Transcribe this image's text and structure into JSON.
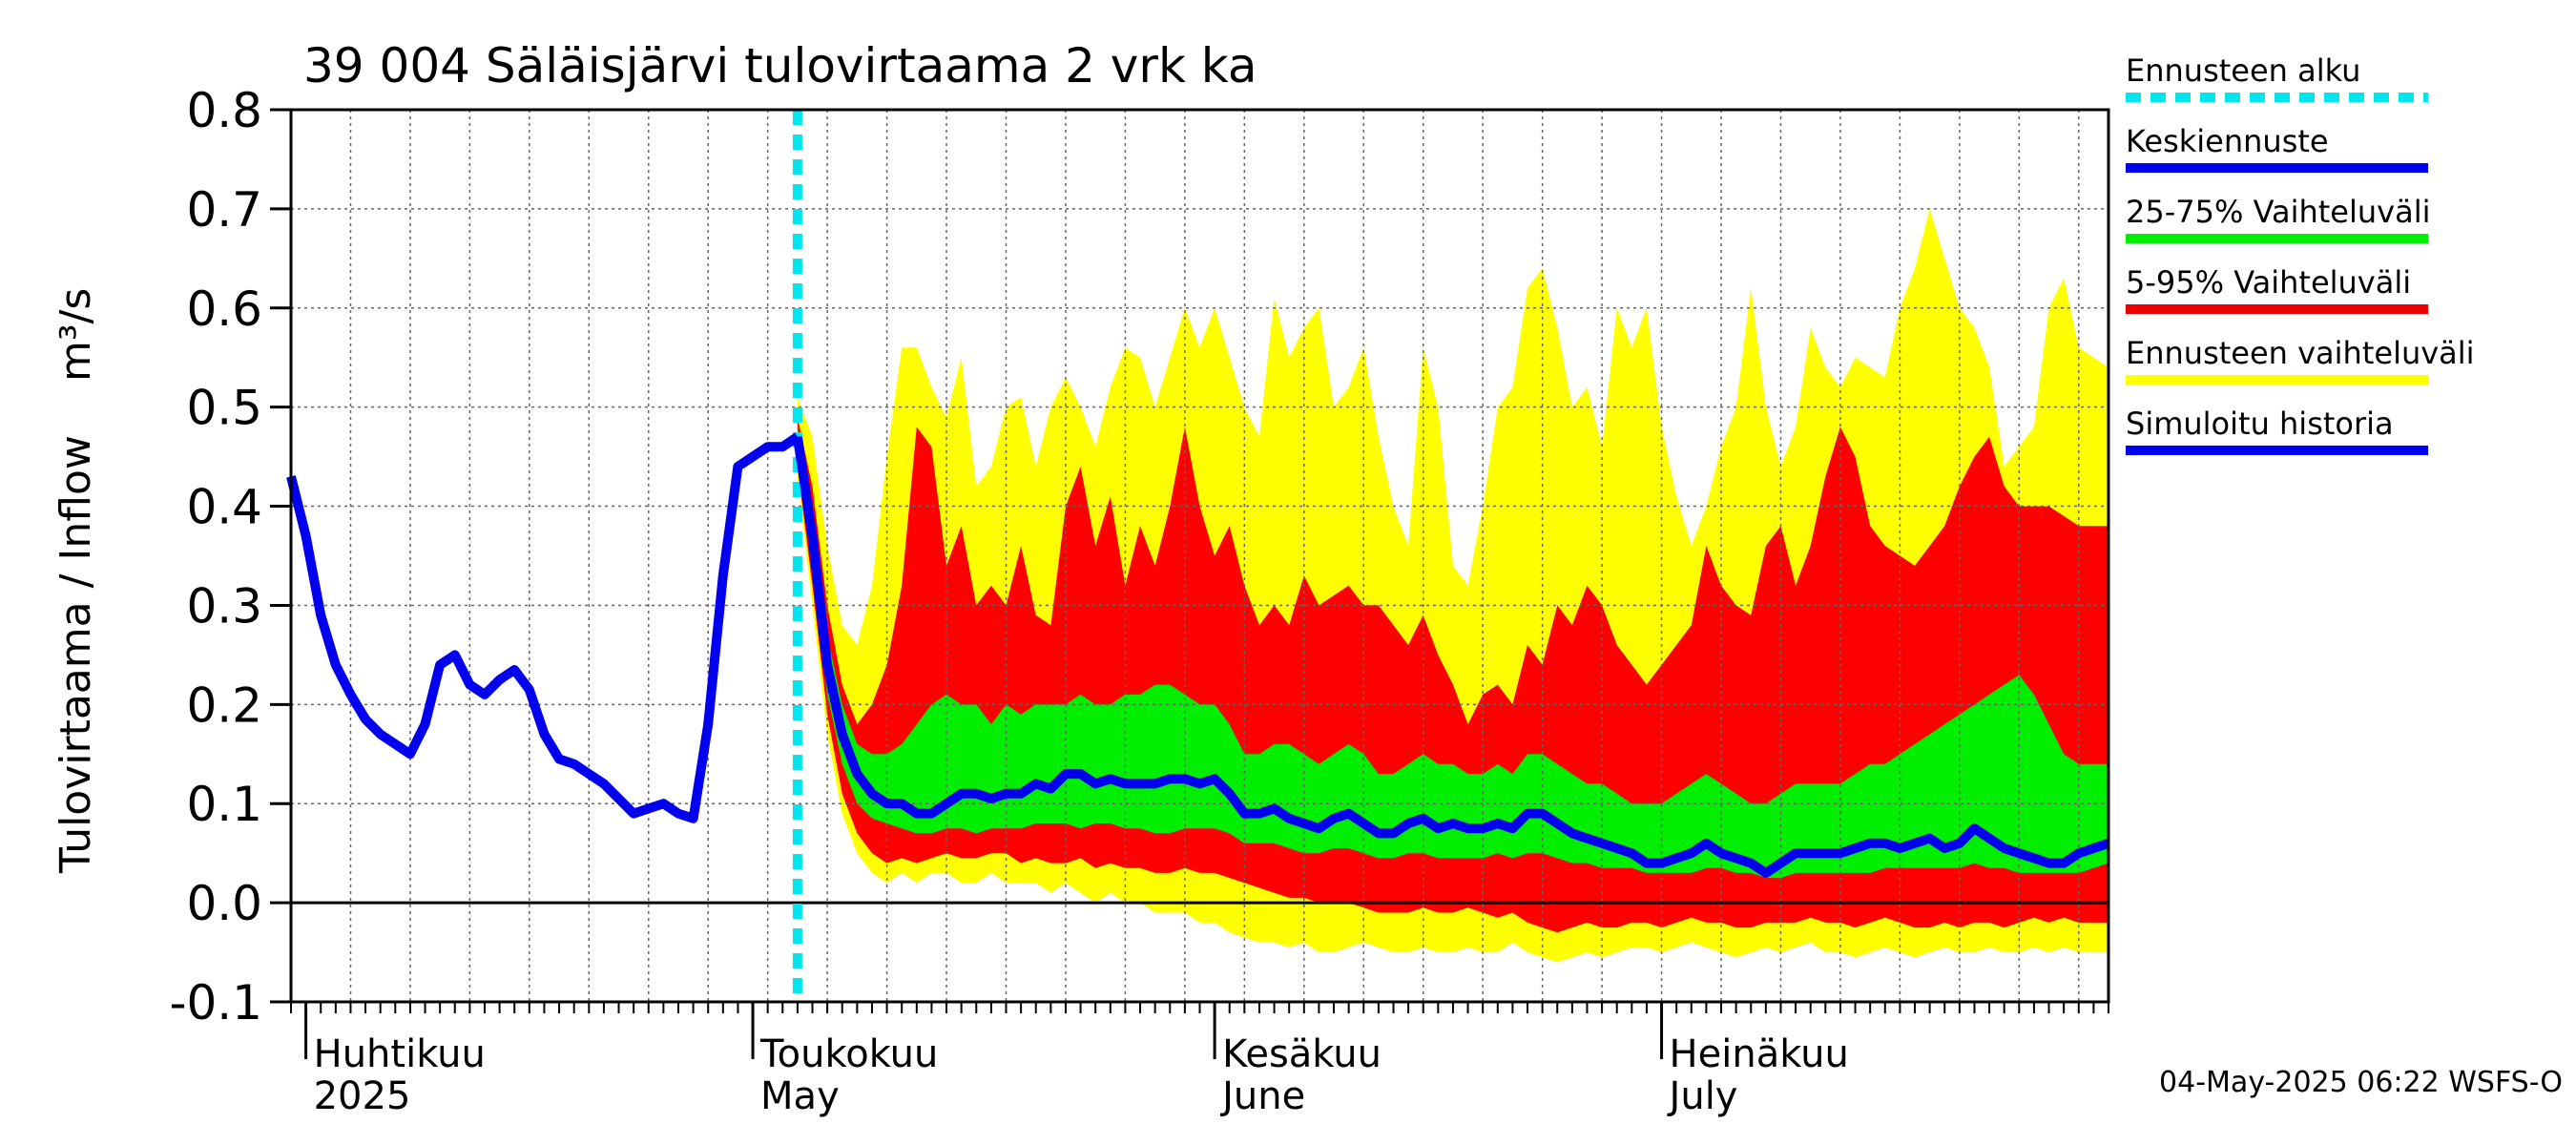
{
  "chart_data": {
    "type": "area",
    "title": "39 004 Säläisjärvi tulovirtaama 2 vrk ka",
    "ylabel": "Tulovirtaama / Inflow",
    "yunit": "m³/s",
    "ylim": [
      -0.1,
      0.8
    ],
    "yticks": [
      -0.1,
      0.0,
      0.1,
      0.2,
      0.3,
      0.4,
      0.5,
      0.6,
      0.7,
      0.8
    ],
    "ytick_labels": [
      "-0.1",
      "0.0",
      "0.1",
      "0.2",
      "0.3",
      "0.4",
      "0.5",
      "0.6",
      "0.7",
      "0.8"
    ],
    "xlim": [
      "2025-03-31",
      "2025-07-31"
    ],
    "grid": true,
    "months": [
      {
        "date": "2025-04-01",
        "fi": "Huhtikuu",
        "en": "2025"
      },
      {
        "date": "2025-05-01",
        "fi": "Toukokuu",
        "en": "May"
      },
      {
        "date": "2025-06-01",
        "fi": "Kesäkuu",
        "en": "June"
      },
      {
        "date": "2025-07-01",
        "fi": "Heinäkuu",
        "en": "July"
      }
    ],
    "forecast_start": "2025-05-04",
    "history": {
      "name": "Simuloitu historia",
      "x": [
        "2025-03-31",
        "2025-04-01",
        "2025-04-02",
        "2025-04-03",
        "2025-04-04",
        "2025-04-05",
        "2025-04-06",
        "2025-04-07",
        "2025-04-08",
        "2025-04-09",
        "2025-04-10",
        "2025-04-11",
        "2025-04-12",
        "2025-04-13",
        "2025-04-14",
        "2025-04-15",
        "2025-04-16",
        "2025-04-17",
        "2025-04-18",
        "2025-04-19",
        "2025-04-20",
        "2025-04-21",
        "2025-04-22",
        "2025-04-23",
        "2025-04-24",
        "2025-04-25",
        "2025-04-26",
        "2025-04-27",
        "2025-04-28",
        "2025-04-29",
        "2025-04-30",
        "2025-05-01",
        "2025-05-02",
        "2025-05-03",
        "2025-05-04"
      ],
      "y": [
        0.43,
        0.37,
        0.29,
        0.24,
        0.21,
        0.185,
        0.17,
        0.16,
        0.15,
        0.18,
        0.24,
        0.25,
        0.22,
        0.21,
        0.225,
        0.235,
        0.215,
        0.17,
        0.145,
        0.14,
        0.13,
        0.12,
        0.105,
        0.09,
        0.095,
        0.1,
        0.09,
        0.085,
        0.18,
        0.33,
        0.44,
        0.45,
        0.46,
        0.46,
        0.47
      ]
    },
    "forecast": {
      "x": [
        "2025-05-04",
        "2025-05-05",
        "2025-05-06",
        "2025-05-07",
        "2025-05-08",
        "2025-05-09",
        "2025-05-10",
        "2025-05-11",
        "2025-05-12",
        "2025-05-13",
        "2025-05-14",
        "2025-05-15",
        "2025-05-16",
        "2025-05-17",
        "2025-05-18",
        "2025-05-19",
        "2025-05-20",
        "2025-05-21",
        "2025-05-22",
        "2025-05-23",
        "2025-05-24",
        "2025-05-25",
        "2025-05-26",
        "2025-05-27",
        "2025-05-28",
        "2025-05-29",
        "2025-05-30",
        "2025-05-31",
        "2025-06-01",
        "2025-06-02",
        "2025-06-03",
        "2025-06-04",
        "2025-06-05",
        "2025-06-06",
        "2025-06-07",
        "2025-06-08",
        "2025-06-09",
        "2025-06-10",
        "2025-06-11",
        "2025-06-12",
        "2025-06-13",
        "2025-06-14",
        "2025-06-15",
        "2025-06-16",
        "2025-06-17",
        "2025-06-18",
        "2025-06-19",
        "2025-06-20",
        "2025-06-21",
        "2025-06-22",
        "2025-06-23",
        "2025-06-24",
        "2025-06-25",
        "2025-06-26",
        "2025-06-27",
        "2025-06-28",
        "2025-06-29",
        "2025-06-30",
        "2025-07-01",
        "2025-07-02",
        "2025-07-03",
        "2025-07-04",
        "2025-07-05",
        "2025-07-06",
        "2025-07-07",
        "2025-07-08",
        "2025-07-09",
        "2025-07-10",
        "2025-07-11",
        "2025-07-12",
        "2025-07-13",
        "2025-07-14",
        "2025-07-15",
        "2025-07-16",
        "2025-07-17",
        "2025-07-18",
        "2025-07-19",
        "2025-07-20",
        "2025-07-21",
        "2025-07-22",
        "2025-07-23",
        "2025-07-24",
        "2025-07-25",
        "2025-07-26",
        "2025-07-27",
        "2025-07-28",
        "2025-07-29",
        "2025-07-30",
        "2025-07-31"
      ],
      "median": [
        0.47,
        0.37,
        0.24,
        0.17,
        0.13,
        0.11,
        0.1,
        0.1,
        0.09,
        0.09,
        0.1,
        0.11,
        0.11,
        0.105,
        0.11,
        0.11,
        0.12,
        0.115,
        0.13,
        0.13,
        0.12,
        0.125,
        0.12,
        0.12,
        0.12,
        0.125,
        0.125,
        0.12,
        0.125,
        0.11,
        0.09,
        0.09,
        0.095,
        0.085,
        0.08,
        0.075,
        0.085,
        0.09,
        0.08,
        0.07,
        0.07,
        0.08,
        0.085,
        0.075,
        0.08,
        0.075,
        0.075,
        0.08,
        0.075,
        0.09,
        0.09,
        0.08,
        0.07,
        0.065,
        0.06,
        0.055,
        0.05,
        0.04,
        0.04,
        0.045,
        0.05,
        0.06,
        0.05,
        0.045,
        0.04,
        0.03,
        0.04,
        0.05,
        0.05,
        0.05,
        0.05,
        0.055,
        0.06,
        0.06,
        0.055,
        0.06,
        0.065,
        0.055,
        0.06,
        0.075,
        0.065,
        0.055,
        0.05,
        0.045,
        0.04,
        0.04,
        0.05,
        0.055,
        0.06
      ],
      "p25": [
        0.45,
        0.34,
        0.21,
        0.14,
        0.1,
        0.085,
        0.08,
        0.075,
        0.07,
        0.07,
        0.075,
        0.075,
        0.07,
        0.075,
        0.075,
        0.075,
        0.08,
        0.08,
        0.08,
        0.075,
        0.08,
        0.08,
        0.075,
        0.075,
        0.07,
        0.07,
        0.075,
        0.075,
        0.075,
        0.07,
        0.06,
        0.06,
        0.06,
        0.055,
        0.05,
        0.05,
        0.055,
        0.055,
        0.05,
        0.045,
        0.045,
        0.05,
        0.05,
        0.045,
        0.045,
        0.045,
        0.045,
        0.05,
        0.045,
        0.05,
        0.05,
        0.045,
        0.04,
        0.04,
        0.035,
        0.035,
        0.035,
        0.03,
        0.03,
        0.03,
        0.03,
        0.035,
        0.035,
        0.03,
        0.03,
        0.025,
        0.025,
        0.03,
        0.03,
        0.03,
        0.03,
        0.03,
        0.03,
        0.035,
        0.035,
        0.035,
        0.035,
        0.035,
        0.035,
        0.04,
        0.035,
        0.035,
        0.03,
        0.03,
        0.03,
        0.03,
        0.03,
        0.035,
        0.04
      ],
      "p75": [
        0.48,
        0.39,
        0.27,
        0.2,
        0.16,
        0.15,
        0.15,
        0.16,
        0.18,
        0.2,
        0.21,
        0.2,
        0.2,
        0.18,
        0.2,
        0.19,
        0.2,
        0.2,
        0.2,
        0.21,
        0.2,
        0.2,
        0.21,
        0.21,
        0.22,
        0.22,
        0.21,
        0.2,
        0.2,
        0.18,
        0.15,
        0.15,
        0.16,
        0.16,
        0.15,
        0.14,
        0.15,
        0.16,
        0.15,
        0.13,
        0.13,
        0.14,
        0.15,
        0.14,
        0.14,
        0.13,
        0.13,
        0.14,
        0.13,
        0.15,
        0.15,
        0.14,
        0.13,
        0.12,
        0.12,
        0.11,
        0.1,
        0.1,
        0.1,
        0.11,
        0.12,
        0.13,
        0.12,
        0.11,
        0.1,
        0.1,
        0.11,
        0.12,
        0.12,
        0.12,
        0.12,
        0.13,
        0.14,
        0.14,
        0.15,
        0.16,
        0.17,
        0.18,
        0.19,
        0.2,
        0.21,
        0.22,
        0.23,
        0.21,
        0.18,
        0.15,
        0.14,
        0.14,
        0.14
      ],
      "p5": [
        0.44,
        0.32,
        0.19,
        0.11,
        0.07,
        0.05,
        0.04,
        0.045,
        0.04,
        0.045,
        0.05,
        0.045,
        0.045,
        0.05,
        0.05,
        0.04,
        0.045,
        0.04,
        0.04,
        0.045,
        0.035,
        0.04,
        0.035,
        0.035,
        0.03,
        0.03,
        0.035,
        0.03,
        0.03,
        0.025,
        0.02,
        0.015,
        0.01,
        0.005,
        0.005,
        0.0,
        0.0,
        0.0,
        -0.005,
        -0.01,
        -0.01,
        -0.01,
        -0.005,
        -0.01,
        -0.01,
        -0.005,
        -0.01,
        -0.015,
        -0.01,
        -0.02,
        -0.025,
        -0.03,
        -0.025,
        -0.02,
        -0.025,
        -0.025,
        -0.02,
        -0.02,
        -0.025,
        -0.02,
        -0.015,
        -0.02,
        -0.02,
        -0.025,
        -0.025,
        -0.02,
        -0.02,
        -0.02,
        -0.015,
        -0.02,
        -0.02,
        -0.025,
        -0.02,
        -0.015,
        -0.02,
        -0.025,
        -0.025,
        -0.02,
        -0.025,
        -0.02,
        -0.02,
        -0.025,
        -0.02,
        -0.015,
        -0.02,
        -0.015,
        -0.02,
        -0.02,
        -0.02
      ],
      "p95": [
        0.49,
        0.42,
        0.3,
        0.22,
        0.18,
        0.2,
        0.24,
        0.32,
        0.48,
        0.46,
        0.34,
        0.38,
        0.3,
        0.32,
        0.3,
        0.36,
        0.29,
        0.28,
        0.4,
        0.44,
        0.36,
        0.41,
        0.32,
        0.38,
        0.34,
        0.4,
        0.48,
        0.4,
        0.35,
        0.38,
        0.32,
        0.28,
        0.3,
        0.28,
        0.33,
        0.3,
        0.31,
        0.32,
        0.3,
        0.3,
        0.28,
        0.26,
        0.29,
        0.25,
        0.22,
        0.18,
        0.21,
        0.22,
        0.2,
        0.26,
        0.24,
        0.3,
        0.28,
        0.32,
        0.3,
        0.26,
        0.24,
        0.22,
        0.24,
        0.26,
        0.28,
        0.36,
        0.32,
        0.3,
        0.29,
        0.36,
        0.38,
        0.32,
        0.36,
        0.43,
        0.48,
        0.45,
        0.38,
        0.36,
        0.35,
        0.34,
        0.36,
        0.38,
        0.42,
        0.45,
        0.47,
        0.42,
        0.4,
        0.4,
        0.4,
        0.39,
        0.38,
        0.38,
        0.38
      ],
      "min": [
        0.43,
        0.3,
        0.17,
        0.09,
        0.05,
        0.03,
        0.02,
        0.03,
        0.02,
        0.03,
        0.03,
        0.02,
        0.02,
        0.03,
        0.02,
        0.02,
        0.02,
        0.01,
        0.02,
        0.01,
        0.0,
        0.01,
        0.0,
        0.0,
        -0.01,
        -0.01,
        -0.01,
        -0.02,
        -0.02,
        -0.03,
        -0.035,
        -0.04,
        -0.04,
        -0.045,
        -0.04,
        -0.05,
        -0.05,
        -0.045,
        -0.04,
        -0.045,
        -0.05,
        -0.05,
        -0.045,
        -0.05,
        -0.05,
        -0.045,
        -0.05,
        -0.05,
        -0.04,
        -0.05,
        -0.055,
        -0.06,
        -0.055,
        -0.05,
        -0.055,
        -0.05,
        -0.045,
        -0.045,
        -0.05,
        -0.045,
        -0.04,
        -0.045,
        -0.05,
        -0.055,
        -0.05,
        -0.045,
        -0.05,
        -0.045,
        -0.04,
        -0.05,
        -0.05,
        -0.055,
        -0.05,
        -0.045,
        -0.05,
        -0.055,
        -0.05,
        -0.045,
        -0.05,
        -0.05,
        -0.045,
        -0.05,
        -0.05,
        -0.045,
        -0.05,
        -0.045,
        -0.05,
        -0.05,
        -0.05
      ],
      "max": [
        0.51,
        0.47,
        0.36,
        0.28,
        0.26,
        0.32,
        0.45,
        0.56,
        0.56,
        0.52,
        0.49,
        0.55,
        0.42,
        0.44,
        0.5,
        0.51,
        0.44,
        0.5,
        0.53,
        0.5,
        0.46,
        0.52,
        0.56,
        0.55,
        0.5,
        0.55,
        0.6,
        0.56,
        0.6,
        0.55,
        0.5,
        0.47,
        0.61,
        0.55,
        0.58,
        0.6,
        0.5,
        0.52,
        0.56,
        0.47,
        0.4,
        0.36,
        0.56,
        0.5,
        0.34,
        0.32,
        0.4,
        0.5,
        0.52,
        0.62,
        0.64,
        0.58,
        0.5,
        0.52,
        0.46,
        0.6,
        0.56,
        0.6,
        0.48,
        0.41,
        0.36,
        0.4,
        0.46,
        0.5,
        0.62,
        0.5,
        0.44,
        0.48,
        0.58,
        0.54,
        0.52,
        0.55,
        0.54,
        0.53,
        0.6,
        0.64,
        0.7,
        0.65,
        0.6,
        0.58,
        0.54,
        0.44,
        0.46,
        0.48,
        0.6,
        0.63,
        0.56,
        0.55,
        0.54
      ]
    }
  },
  "legend": [
    {
      "label": "Ennusteen alku",
      "color": "#00e5ee",
      "style": "dashed"
    },
    {
      "label": "Keskiennuste",
      "color": "#0000ee",
      "style": "solid"
    },
    {
      "label": "25-75% Vaihteluväli",
      "color": "#00ee00",
      "style": "solid"
    },
    {
      "label": "5-95% Vaihteluväli",
      "color": "#ee0000",
      "style": "solid"
    },
    {
      "label": "Ennusteen vaihteluväli",
      "color": "#ffff00",
      "style": "solid"
    },
    {
      "label": "Simuloitu historia",
      "color": "#0000ee",
      "style": "solid"
    }
  ],
  "colors": {
    "yellow": "#ffff00",
    "red": "#ff0000",
    "green": "#00ee00",
    "blue": "#0000ee",
    "cyan": "#00e5ee"
  },
  "footer": "04-May-2025 06:22 WSFS-O"
}
